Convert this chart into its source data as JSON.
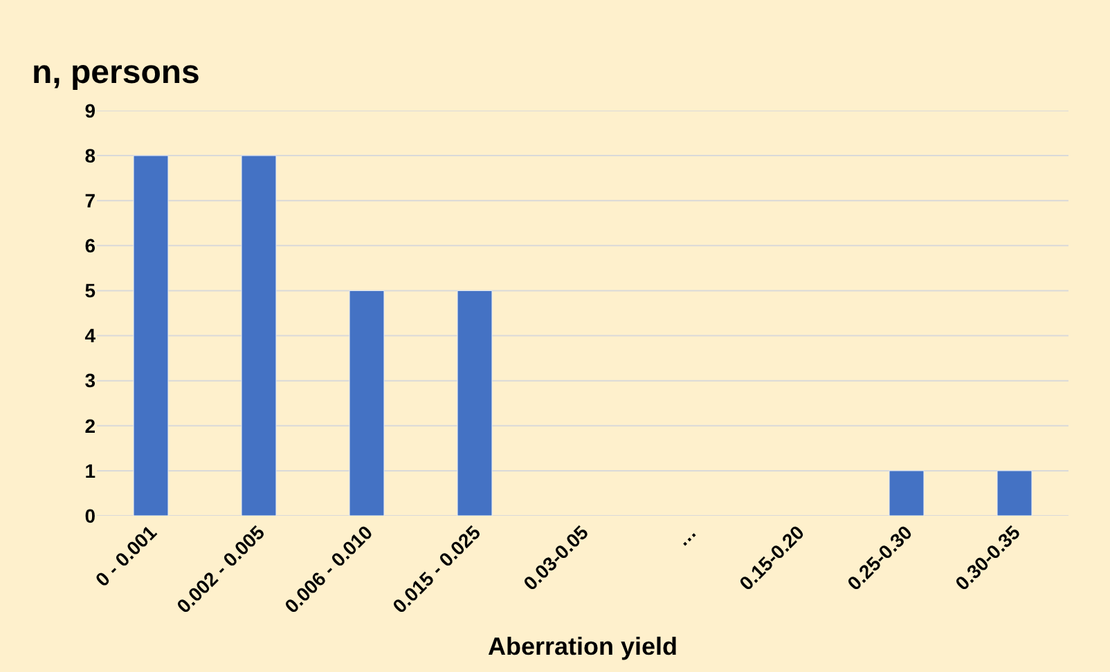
{
  "chart_data": {
    "type": "bar",
    "ylabel": "n, persons",
    "xlabel": "Aberration yield",
    "categories": [
      "0 - 0.001",
      "0.002 - 0.005",
      "0.006 - 0.010",
      "0.015 - 0.025",
      "0.03-0.05",
      "…",
      "0.15-0.20",
      "0.25-0.30",
      "0.30-0.35"
    ],
    "values": [
      8,
      8,
      5,
      5,
      null,
      null,
      null,
      1,
      1
    ],
    "color": "#4472c4",
    "ylim": [
      0,
      9
    ],
    "yticks": [
      0,
      1,
      2,
      3,
      4,
      5,
      6,
      7,
      8,
      9
    ],
    "grid": "y"
  }
}
